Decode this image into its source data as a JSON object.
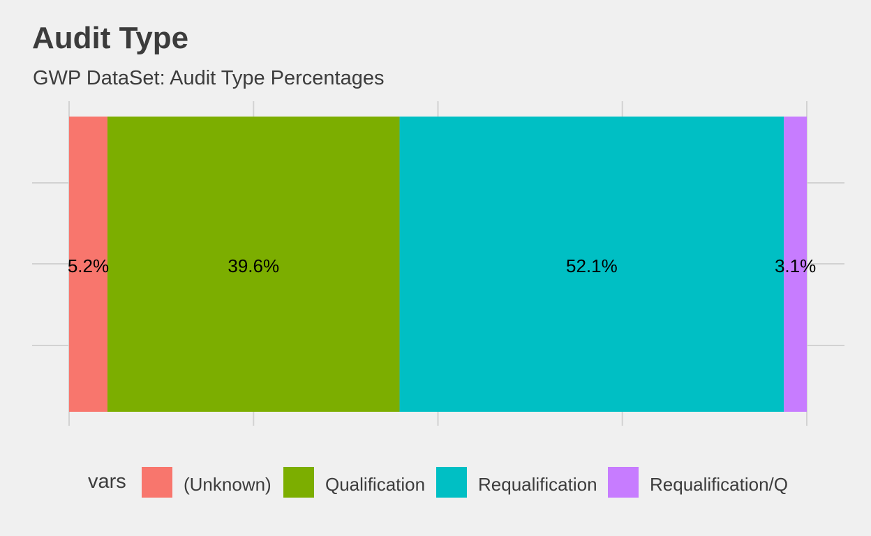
{
  "title": "Audit Type",
  "subtitle": "GWP DataSet: Audit Type Percentages",
  "legend": {
    "title": "vars",
    "items": [
      {
        "label": "(Unknown)",
        "color": "#F8766D"
      },
      {
        "label": "Qualification",
        "color": "#7CAE00"
      },
      {
        "label": "Requalification",
        "color": "#00BFC4"
      },
      {
        "label": "Requalification/Q",
        "color": "#C77CFF"
      }
    ]
  },
  "chart_data": {
    "type": "bar",
    "orientation": "horizontal-stacked",
    "title": "Audit Type",
    "subtitle": "GWP DataSet: Audit Type Percentages",
    "xlabel": "",
    "ylabel": "",
    "xlim": [
      0,
      100
    ],
    "grid": true,
    "legend_position": "bottom",
    "series": [
      {
        "name": "(Unknown)",
        "value": 5.2,
        "label": "5.2%",
        "color": "#F8766D"
      },
      {
        "name": "Qualification",
        "value": 39.6,
        "label": "39.6%",
        "color": "#7CAE00"
      },
      {
        "name": "Requalification",
        "value": 52.1,
        "label": "52.1%",
        "color": "#00BFC4"
      },
      {
        "name": "Requalification/Q",
        "value": 3.1,
        "label": "3.1%",
        "color": "#C77CFF"
      }
    ]
  }
}
